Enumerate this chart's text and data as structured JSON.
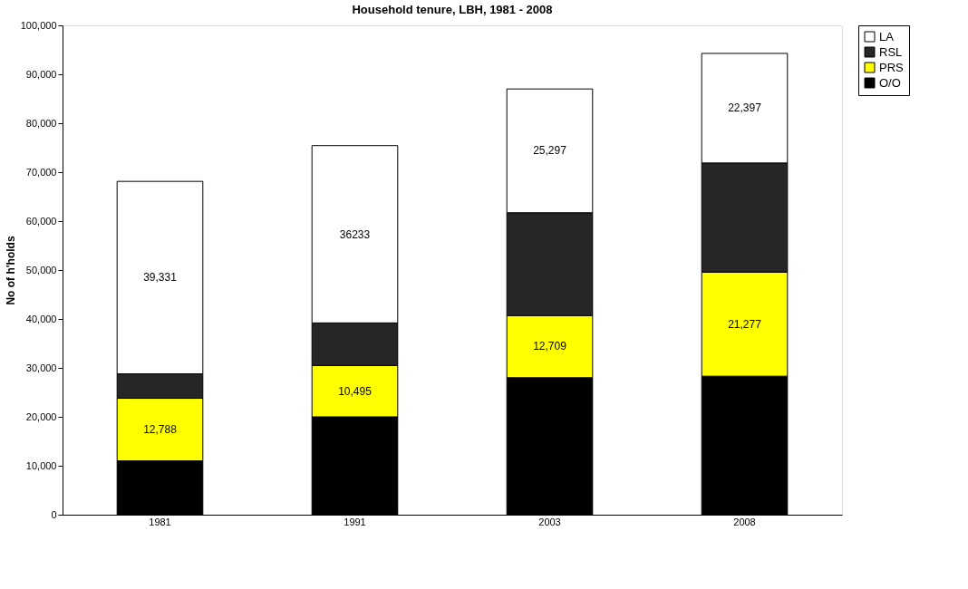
{
  "chart_data": {
    "type": "bar",
    "stacked": true,
    "title": "Household tenure, LBH, 1981 - 2008",
    "ylabel": "No of h'holds",
    "categories": [
      "1981",
      "1991",
      "2003",
      "2008"
    ],
    "series": [
      {
        "name": "O/O",
        "color": "#000000",
        "values": [
          11000,
          20000,
          28000,
          28300
        ],
        "value_labels": [
          null,
          null,
          null,
          null
        ]
      },
      {
        "name": "PRS",
        "color": "#ffff00",
        "values": [
          12788,
          10495,
          12709,
          21277
        ],
        "value_labels": [
          "12,788",
          "10,495",
          "12,709",
          "21,277"
        ]
      },
      {
        "name": "RSL",
        "color": "#262626",
        "values": [
          5000,
          8700,
          21000,
          22300
        ],
        "value_labels": [
          null,
          null,
          null,
          null
        ]
      },
      {
        "name": "LA",
        "color": "#ffffff",
        "values": [
          39331,
          36233,
          25297,
          22397
        ],
        "value_labels": [
          "39,331",
          "36233",
          "25,297",
          "22,397"
        ]
      }
    ],
    "ylim": [
      0,
      100000
    ],
    "yticks": [
      0,
      {
        "value": 10000,
        "label": "10,000"
      },
      {
        "value": 20000,
        "label": "20,000"
      },
      {
        "value": 30000,
        "label": "30,000"
      },
      {
        "value": 40000,
        "label": "40,000"
      },
      {
        "value": 50000,
        "label": "50,000"
      },
      {
        "value": 60000,
        "label": "60,000"
      },
      {
        "value": 70000,
        "label": "70,000"
      },
      {
        "value": 80000,
        "label": "80,000"
      },
      {
        "value": 90000,
        "label": "90,000"
      },
      {
        "value": 100000,
        "label": "100,000"
      }
    ],
    "grid": false,
    "legend": "right"
  }
}
